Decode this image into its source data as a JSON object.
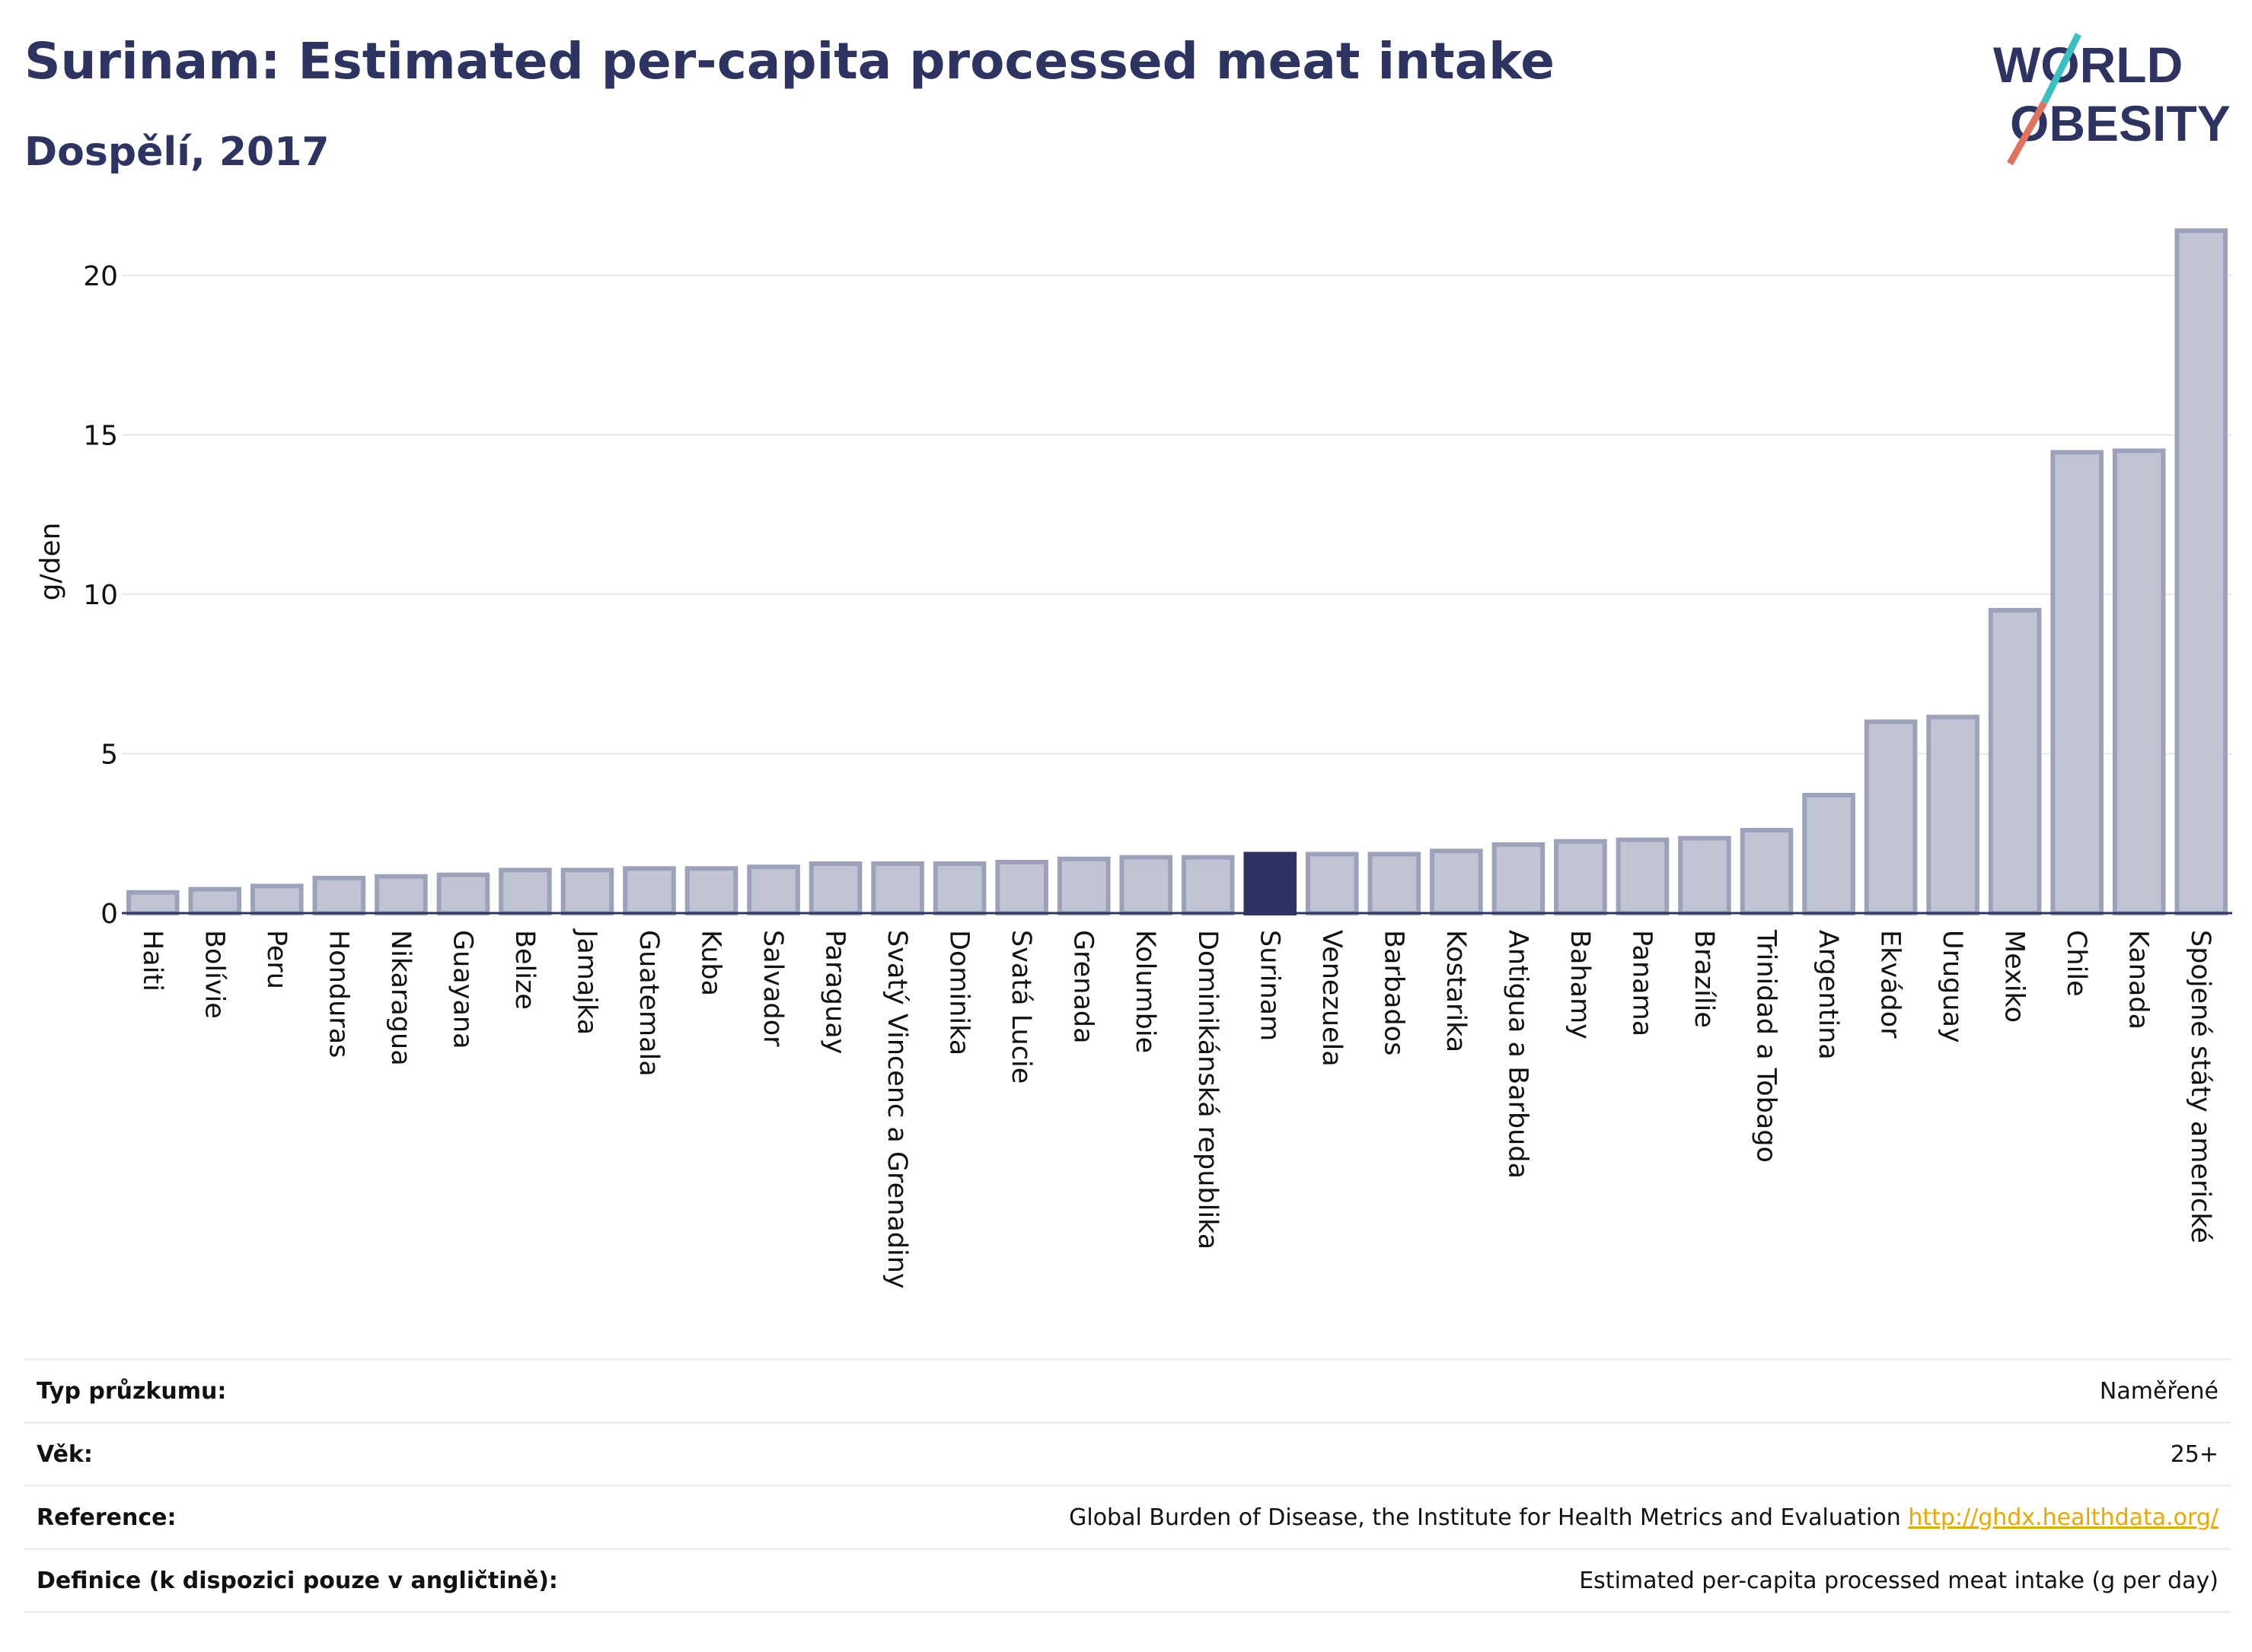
{
  "header": {
    "title": "Surinam: Estimated per-capita processed meat intake",
    "subtitle": "Dospělí, 2017",
    "logo_text": "WORLD OBESITY"
  },
  "colors": {
    "title": "#2d3461",
    "bar_default": "#c1c4d2",
    "bar_default_stroke": "#9da2bb",
    "bar_highlight": "#2d3461",
    "gridline": "#e7e9ee",
    "logo_teal": "#3bbfc1",
    "logo_coral": "#e0735f",
    "link": "#e8a800"
  },
  "chart_data": {
    "type": "bar",
    "title": "Surinam: Estimated per-capita processed meat intake",
    "subtitle": "Dospělí, 2017",
    "xlabel": "",
    "ylabel": "g/den",
    "ylim": [
      0,
      22
    ],
    "yticks": [
      0,
      5,
      10,
      15,
      20
    ],
    "grid": true,
    "highlight": "Surinam",
    "categories": [
      "Haiti",
      "Bolívie",
      "Peru",
      "Honduras",
      "Nikaragua",
      "Guayana",
      "Belize",
      "Jamajka",
      "Guatemala",
      "Kuba",
      "Salvador",
      "Paraguay",
      "Svatý Vincenc a Grenadiny",
      "Dominika",
      "Svatá Lucie",
      "Grenada",
      "Kolumbie",
      "Dominikánská republika",
      "Surinam",
      "Venezuela",
      "Barbados",
      "Kostarika",
      "Antigua a Barbuda",
      "Bahamy",
      "Panama",
      "Brazílie",
      "Trinidad a Tobago",
      "Argentina",
      "Ekvádor",
      "Uruguay",
      "Mexiko",
      "Chile",
      "Kanada",
      "Spojené státy americké"
    ],
    "values": [
      0.65,
      0.75,
      0.85,
      1.1,
      1.15,
      1.2,
      1.35,
      1.35,
      1.4,
      1.4,
      1.45,
      1.55,
      1.55,
      1.55,
      1.6,
      1.7,
      1.75,
      1.75,
      1.85,
      1.85,
      1.85,
      1.95,
      2.15,
      2.25,
      2.3,
      2.35,
      2.6,
      3.7,
      6.0,
      6.15,
      9.5,
      14.45,
      14.5,
      21.4
    ]
  },
  "meta": [
    {
      "label": "Typ průzkumu:",
      "value": "Naměřené"
    },
    {
      "label": "Věk:",
      "value": "25+"
    },
    {
      "label": "Reference:",
      "value": "Global Burden of Disease, the Institute for Health Metrics and Evaluation",
      "link": "http://ghdx.healthdata.org/"
    },
    {
      "label": "Definice (k dispozici pouze v angličtině):",
      "value": "Estimated per-capita processed meat intake (g per day)"
    }
  ]
}
